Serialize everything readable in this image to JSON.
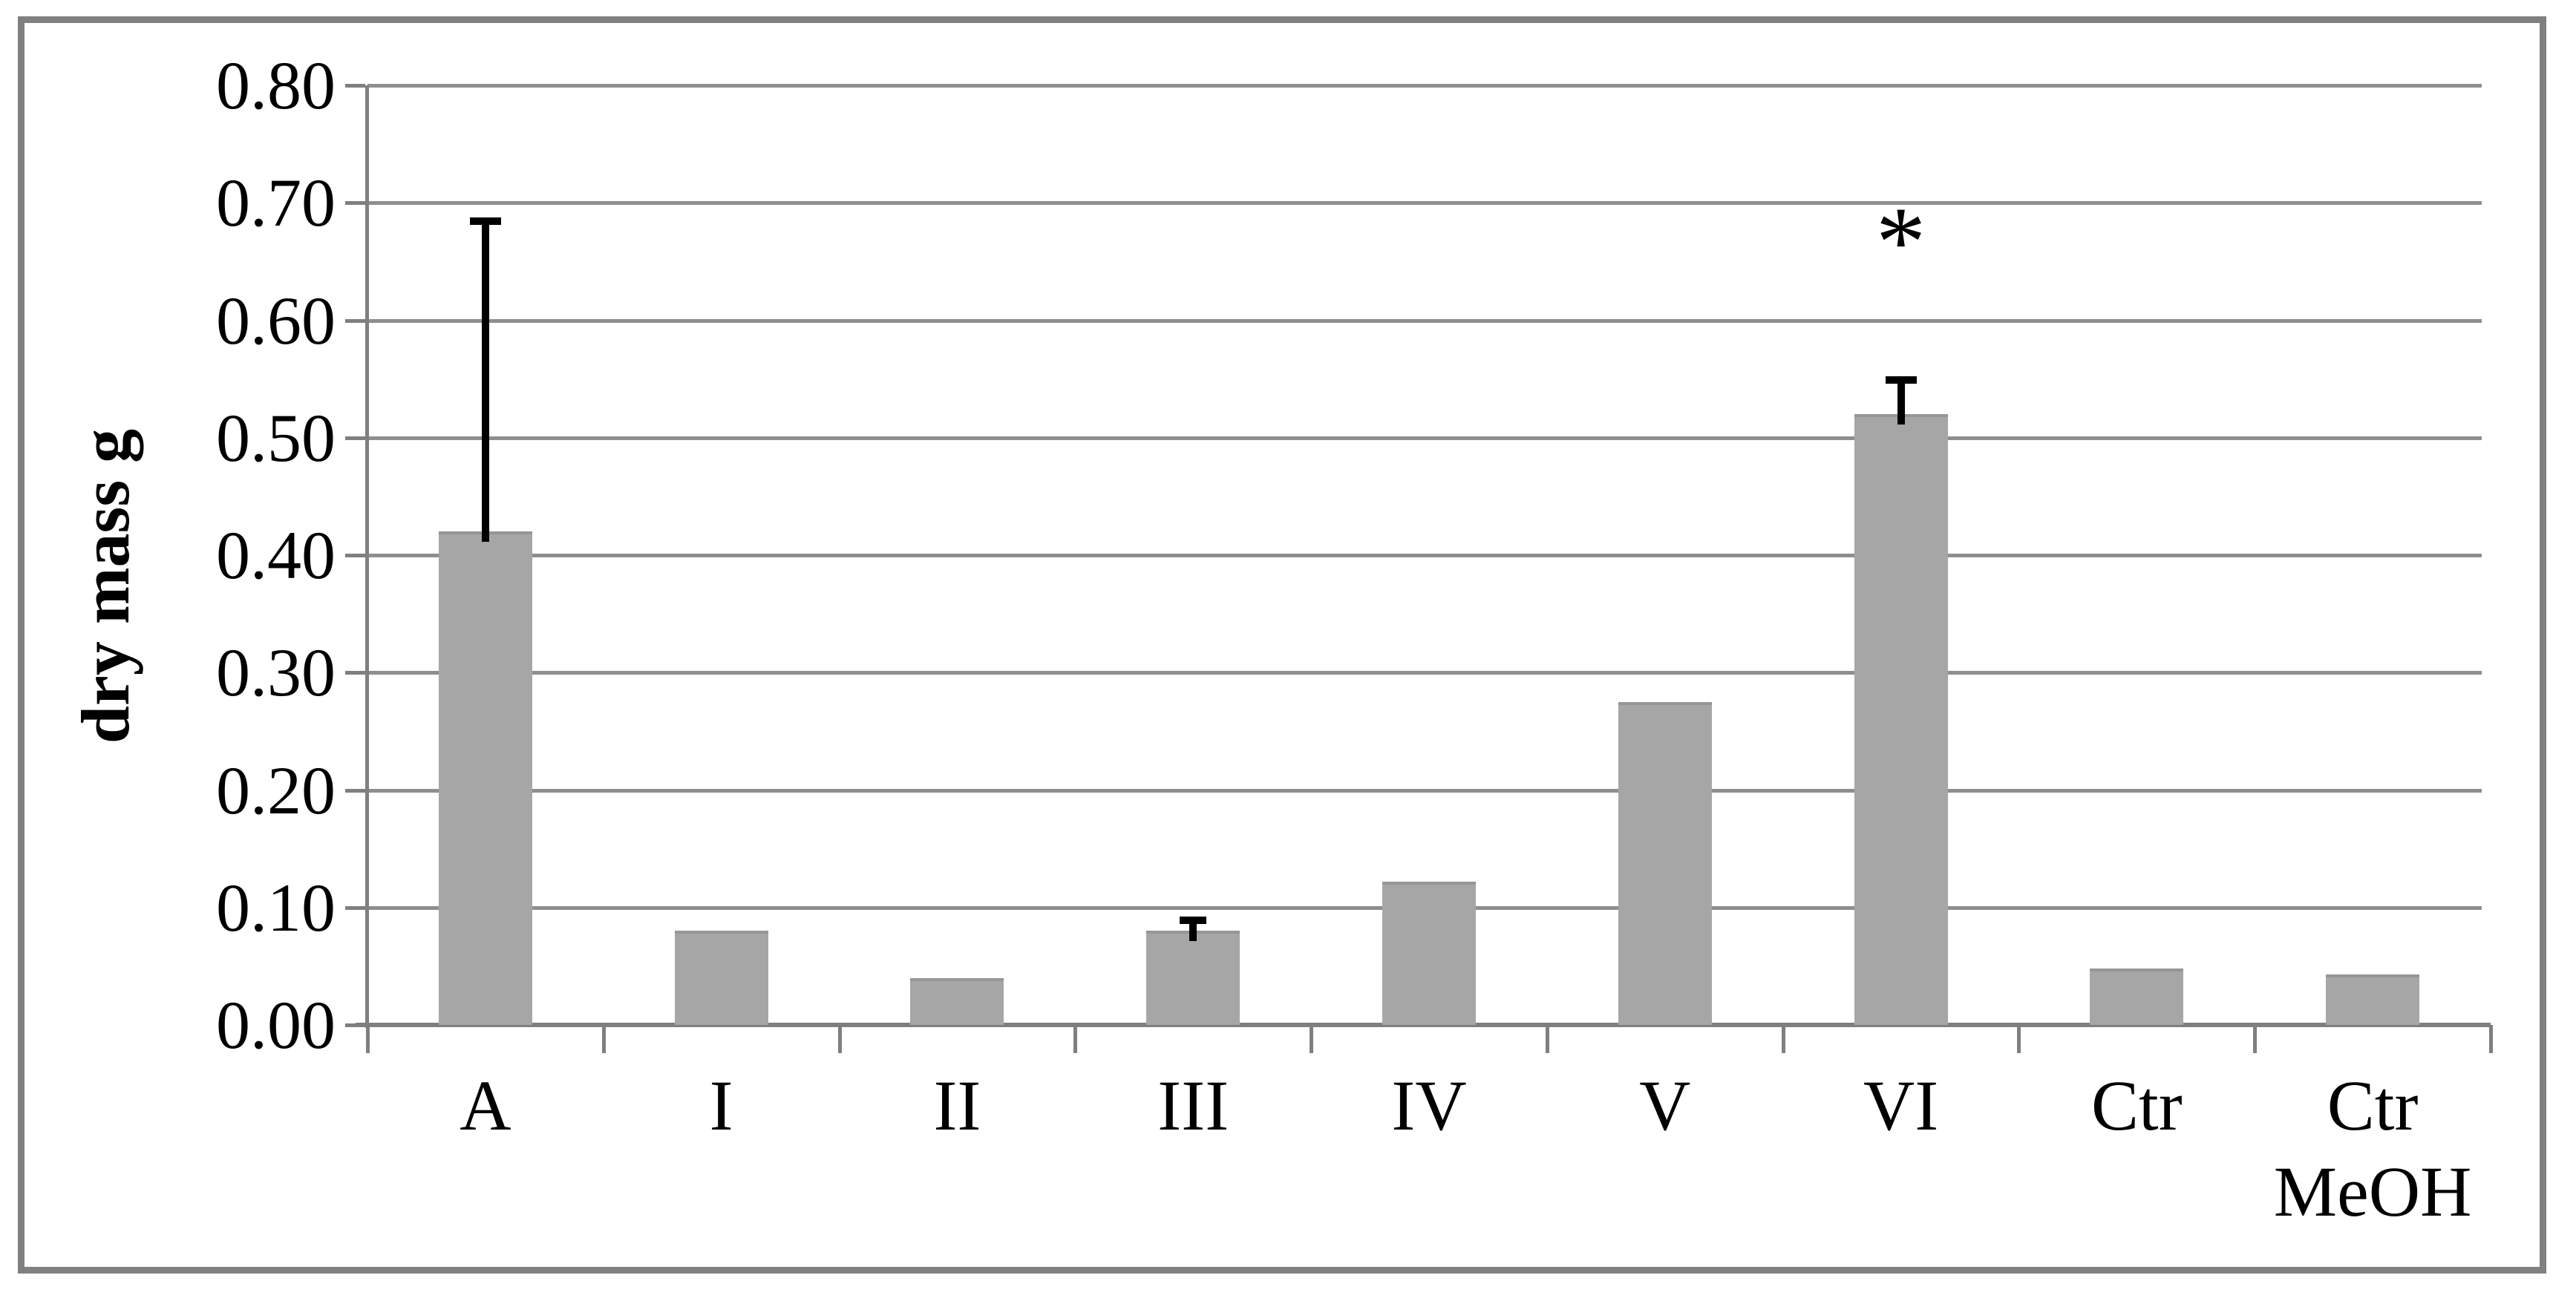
{
  "chart_data": {
    "type": "bar",
    "title": "",
    "ylabel": "dry mass g",
    "xlabel": "",
    "ylim": [
      0,
      0.8
    ],
    "ytick_step": 0.1,
    "ytick_labels": [
      "0.00",
      "0.10",
      "0.20",
      "0.30",
      "0.40",
      "0.50",
      "0.60",
      "0.70",
      "0.80"
    ],
    "grid": true,
    "legend": null,
    "categories": [
      "A",
      "I",
      "II",
      "III",
      "IV",
      "V",
      "VI",
      "Ctr",
      "Ctr MeOH"
    ],
    "category_label_lines": [
      [
        "A"
      ],
      [
        "I"
      ],
      [
        "II"
      ],
      [
        "III"
      ],
      [
        "IV"
      ],
      [
        "V"
      ],
      [
        "VI"
      ],
      [
        "Ctr"
      ],
      [
        "Ctr",
        "MeOH"
      ]
    ],
    "values": [
      0.42,
      0.08,
      0.04,
      0.08,
      0.122,
      0.275,
      0.52,
      0.048,
      0.043
    ],
    "errors_plus": [
      0.265,
      0,
      0,
      0.01,
      0,
      0,
      0.03,
      0,
      0
    ],
    "annotations": [
      {
        "text": "*",
        "meaning": "significance-marker",
        "category_index": 6,
        "y": 0.665
      }
    ]
  },
  "colors": {
    "background": "#ffffff",
    "frame_border": "#808080",
    "bar_fill": "#a6a6a6",
    "bar_top_edge": "#969696",
    "gridline": "#8e8e8e",
    "axis": "#7f7f7f",
    "error_bar": "#000000",
    "text": "#000000"
  }
}
